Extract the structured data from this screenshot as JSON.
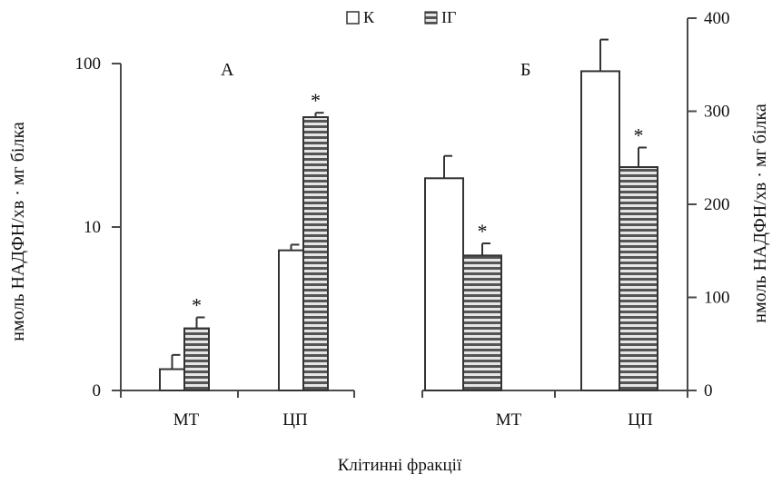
{
  "legend": {
    "items": [
      {
        "label": "К",
        "pattern": "white"
      },
      {
        "label": "ІГ",
        "pattern": "striped"
      }
    ]
  },
  "xlabel": "Клітинні фракції",
  "colors": {
    "axis": "#4a4a4a",
    "bar_outline": "#333333",
    "stripe_dark": "#555555",
    "stripe_light": "#e6e6e6"
  },
  "chart_data": [
    {
      "type": "bar",
      "panel_label": "А",
      "scale": "log",
      "ylabel": "нмоль НАДФН/хв · мг білка",
      "yticks": [
        {
          "value": 1,
          "label": "0"
        },
        {
          "value": 10,
          "label": "10"
        },
        {
          "value": 100,
          "label": "100"
        }
      ],
      "ylim": [
        1,
        100
      ],
      "categories": [
        "МТ",
        "ЦП"
      ],
      "series": [
        {
          "name": "К",
          "values": [
            1.35,
            7.2
          ],
          "errors": [
            0.3,
            0.6
          ]
        },
        {
          "name": "ІГ",
          "values": [
            2.4,
            47
          ],
          "errors": [
            0.4,
            3
          ]
        }
      ],
      "significance": [
        {
          "category": "МТ",
          "series": "ІГ",
          "label": "*"
        },
        {
          "category": "ЦП",
          "series": "ІГ",
          "label": "*"
        }
      ]
    },
    {
      "type": "bar",
      "panel_label": "Б",
      "scale": "linear",
      "ylabel": "нмоль НАДФН/хв · мг білка",
      "yticks": [
        {
          "value": 0,
          "label": "0"
        },
        {
          "value": 100,
          "label": "100"
        },
        {
          "value": 200,
          "label": "200"
        },
        {
          "value": 300,
          "label": "300"
        },
        {
          "value": 400,
          "label": "400"
        }
      ],
      "ylim": [
        0,
        400
      ],
      "categories": [
        "МТ",
        "ЦП"
      ],
      "series": [
        {
          "name": "К",
          "values": [
            228,
            343
          ],
          "errors": [
            24,
            34
          ]
        },
        {
          "name": "ІГ",
          "values": [
            145,
            240
          ],
          "errors": [
            13,
            21
          ]
        }
      ],
      "significance": [
        {
          "category": "МТ",
          "series": "ІГ",
          "label": "*"
        },
        {
          "category": "ЦП",
          "series": "ІГ",
          "label": "*"
        }
      ]
    }
  ]
}
